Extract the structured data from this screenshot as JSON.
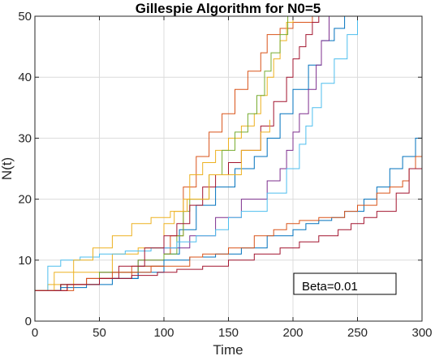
{
  "chart_data": {
    "type": "line",
    "title": "Gillespie Algorithm for N0=5",
    "xlabel": "Time",
    "ylabel": "N(t)",
    "xlim": [
      0,
      300
    ],
    "ylim": [
      0,
      50
    ],
    "xticks": [
      "0",
      "50",
      "100",
      "150",
      "200",
      "250",
      "300"
    ],
    "yticks": [
      "0",
      "10",
      "20",
      "30",
      "40",
      "50"
    ],
    "grid": true,
    "annotation": "Beta=0.01",
    "series": [
      {
        "color": "#0072BD",
        "x": [
          0,
          20,
          50,
          80,
          100,
          112,
          125,
          140,
          155,
          170,
          180,
          190,
          200,
          212,
          222,
          232,
          240
        ],
        "y": [
          5,
          6,
          7,
          9,
          11,
          15,
          19,
          22,
          25,
          27,
          30,
          34,
          38,
          42,
          46,
          48,
          50
        ]
      },
      {
        "color": "#D95319",
        "x": [
          0,
          25,
          50,
          75,
          100,
          105,
          115,
          125,
          135,
          145,
          155,
          165,
          175,
          180,
          190,
          200,
          215,
          225
        ],
        "y": [
          5,
          6,
          7,
          9,
          11,
          14,
          22,
          27,
          31,
          34,
          38,
          41,
          44,
          47,
          48,
          49,
          50,
          50
        ]
      },
      {
        "color": "#EDB120",
        "x": [
          0,
          10,
          30,
          60,
          80,
          100,
          108,
          115,
          120,
          130,
          140,
          150,
          160,
          170,
          175,
          180,
          185,
          190,
          195,
          200
        ],
        "y": [
          5,
          6,
          8,
          11,
          12,
          16,
          18,
          20,
          24,
          26,
          28,
          30,
          32,
          34,
          37,
          40,
          43,
          46,
          49,
          50
        ]
      },
      {
        "color": "#7E2F8E",
        "x": [
          0,
          20,
          50,
          80,
          100,
          120,
          140,
          160,
          180,
          190,
          195,
          200,
          205,
          212,
          218,
          222,
          228
        ],
        "y": [
          5,
          6,
          8,
          10,
          12,
          14,
          17,
          20,
          23,
          25,
          28,
          31,
          34,
          38,
          42,
          46,
          50
        ]
      },
      {
        "color": "#77AC30",
        "x": [
          0,
          20,
          50,
          80,
          100,
          110,
          115,
          120,
          135,
          145,
          155,
          165,
          172,
          178,
          183,
          190,
          196,
          200
        ],
        "y": [
          5,
          6,
          8,
          10,
          11,
          14,
          18,
          20,
          24,
          28,
          31,
          34,
          37,
          41,
          44,
          47,
          50,
          50
        ]
      },
      {
        "color": "#4DBEEE",
        "x": [
          0,
          10,
          20,
          35,
          50,
          70,
          90,
          110,
          125,
          140,
          150,
          160,
          180,
          195,
          205,
          210,
          215,
          222,
          232,
          242,
          250
        ],
        "y": [
          5,
          9,
          10,
          10.5,
          11,
          11.5,
          12,
          13,
          14,
          15,
          17,
          18,
          21,
          25,
          29,
          32,
          35,
          39,
          43,
          47,
          50
        ]
      },
      {
        "color": "#A2142F",
        "x": [
          0,
          20,
          40,
          65,
          85,
          100,
          110,
          120,
          130,
          140,
          150,
          160,
          175,
          185,
          195,
          200,
          205,
          210,
          215,
          220
        ],
        "y": [
          5,
          6,
          7,
          9,
          12,
          14,
          16,
          19,
          22,
          24,
          26,
          28,
          32,
          36,
          40,
          43,
          45,
          47,
          49,
          50
        ]
      },
      {
        "color": "#0072BD",
        "x": [
          0,
          20,
          40,
          60,
          80,
          100,
          120,
          140,
          160,
          180,
          200,
          210,
          220,
          230,
          240,
          255,
          265,
          275,
          285,
          295,
          300
        ],
        "y": [
          5,
          5.5,
          6,
          7,
          8,
          10,
          10.5,
          11,
          12,
          14,
          15,
          16,
          16.5,
          17,
          18,
          20,
          22,
          25,
          27,
          30,
          31
        ]
      },
      {
        "color": "#D95319",
        "x": [
          0,
          30,
          40,
          60,
          90,
          120,
          130,
          150,
          170,
          185,
          195,
          205,
          220,
          240,
          250,
          265,
          275,
          285,
          290,
          295,
          300
        ],
        "y": [
          5,
          6,
          7,
          8,
          9,
          10.5,
          11,
          12,
          14,
          15,
          16,
          16.5,
          17,
          18,
          19,
          21,
          22,
          23,
          25,
          27,
          28.5
        ]
      },
      {
        "color": "#EDB120",
        "x": [
          0,
          15,
          30,
          45,
          60,
          75,
          90,
          105,
          118,
          135,
          160,
          175,
          182
        ],
        "y": [
          5,
          8,
          10,
          12,
          14,
          16,
          17,
          18,
          20,
          24,
          28,
          31,
          33
        ]
      },
      {
        "color": "#A2142F",
        "x": [
          0,
          25,
          50,
          75,
          95,
          110,
          130,
          150,
          170,
          190,
          205,
          220,
          235,
          245,
          255,
          265,
          280,
          290,
          300
        ],
        "y": [
          5,
          6,
          7,
          7.5,
          8,
          8.5,
          9,
          10,
          11,
          12,
          13,
          14,
          15,
          16,
          17,
          18,
          21,
          25,
          28.5
        ]
      }
    ]
  }
}
